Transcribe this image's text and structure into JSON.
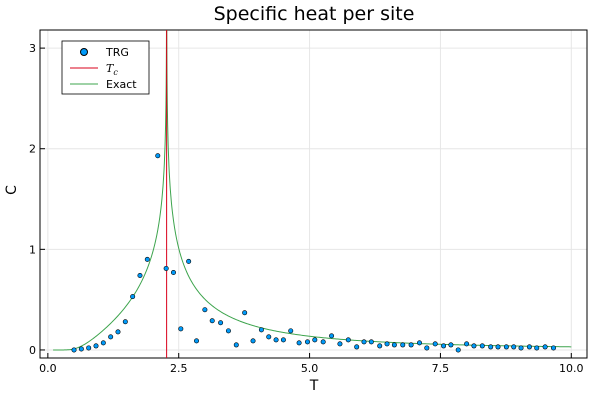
{
  "chart_data": {
    "type": "scatter",
    "title": "Specific heat per site",
    "xlabel": "T",
    "ylabel": "C",
    "xlim": [
      -0.15,
      10.3
    ],
    "ylim": [
      -0.08,
      3.18
    ],
    "x_ticks": [
      0.0,
      2.5,
      5.0,
      7.5,
      10.0
    ],
    "x_tick_labels": [
      "0.0",
      "2.5",
      "5.0",
      "7.5",
      "10.0"
    ],
    "y_ticks": [
      0,
      1,
      2,
      3
    ],
    "y_tick_labels": [
      "0",
      "1",
      "2",
      "3"
    ],
    "grid": true,
    "legend_position": "top-left",
    "series": [
      {
        "name": "TRG",
        "kind": "scatter",
        "color": "#009af9",
        "points": [
          [
            0.5,
            0.0
          ],
          [
            0.64,
            0.01
          ],
          [
            0.78,
            0.02
          ],
          [
            0.92,
            0.04
          ],
          [
            1.06,
            0.07
          ],
          [
            1.2,
            0.13
          ],
          [
            1.34,
            0.18
          ],
          [
            1.48,
            0.28
          ],
          [
            1.62,
            0.53
          ],
          [
            1.76,
            0.74
          ],
          [
            1.9,
            0.9
          ],
          [
            2.1,
            1.93
          ],
          [
            2.26,
            0.81
          ],
          [
            2.4,
            0.77
          ],
          [
            2.54,
            0.21
          ],
          [
            2.69,
            0.88
          ],
          [
            2.84,
            0.09
          ],
          [
            3.0,
            0.4
          ],
          [
            3.14,
            0.29
          ],
          [
            3.3,
            0.27
          ],
          [
            3.45,
            0.19
          ],
          [
            3.6,
            0.05
          ],
          [
            3.76,
            0.37
          ],
          [
            3.92,
            0.09
          ],
          [
            4.08,
            0.2
          ],
          [
            4.22,
            0.13
          ],
          [
            4.36,
            0.1
          ],
          [
            4.5,
            0.1
          ],
          [
            4.64,
            0.19
          ],
          [
            4.8,
            0.07
          ],
          [
            4.96,
            0.08
          ],
          [
            5.1,
            0.1
          ],
          [
            5.26,
            0.08
          ],
          [
            5.42,
            0.14
          ],
          [
            5.58,
            0.06
          ],
          [
            5.74,
            0.1
          ],
          [
            5.9,
            0.03
          ],
          [
            6.04,
            0.08
          ],
          [
            6.18,
            0.08
          ],
          [
            6.34,
            0.04
          ],
          [
            6.48,
            0.06
          ],
          [
            6.62,
            0.05
          ],
          [
            6.78,
            0.05
          ],
          [
            6.94,
            0.05
          ],
          [
            7.1,
            0.07
          ],
          [
            7.24,
            0.02
          ],
          [
            7.4,
            0.06
          ],
          [
            7.56,
            0.04
          ],
          [
            7.7,
            0.05
          ],
          [
            7.84,
            0.0
          ],
          [
            8.0,
            0.06
          ],
          [
            8.14,
            0.04
          ],
          [
            8.3,
            0.04
          ],
          [
            8.46,
            0.03
          ],
          [
            8.6,
            0.03
          ],
          [
            8.76,
            0.03
          ],
          [
            8.9,
            0.03
          ],
          [
            9.04,
            0.02
          ],
          [
            9.2,
            0.03
          ],
          [
            9.34,
            0.02
          ],
          [
            9.5,
            0.03
          ],
          [
            9.66,
            0.02
          ]
        ]
      },
      {
        "name": "T_c",
        "kind": "vline",
        "color": "#e26f46",
        "x": 2.269
      },
      {
        "name": "Exact",
        "kind": "line",
        "color": "#3da44d",
        "function": "Onsager 2D Ising specific heat",
        "x_range": [
          0.1,
          10.0
        ]
      }
    ],
    "legend": [
      {
        "label": "TRG",
        "symbol": "marker"
      },
      {
        "label_main": "T",
        "label_sub": "c",
        "symbol": "line"
      },
      {
        "label": "Exact",
        "symbol": "line"
      }
    ]
  }
}
